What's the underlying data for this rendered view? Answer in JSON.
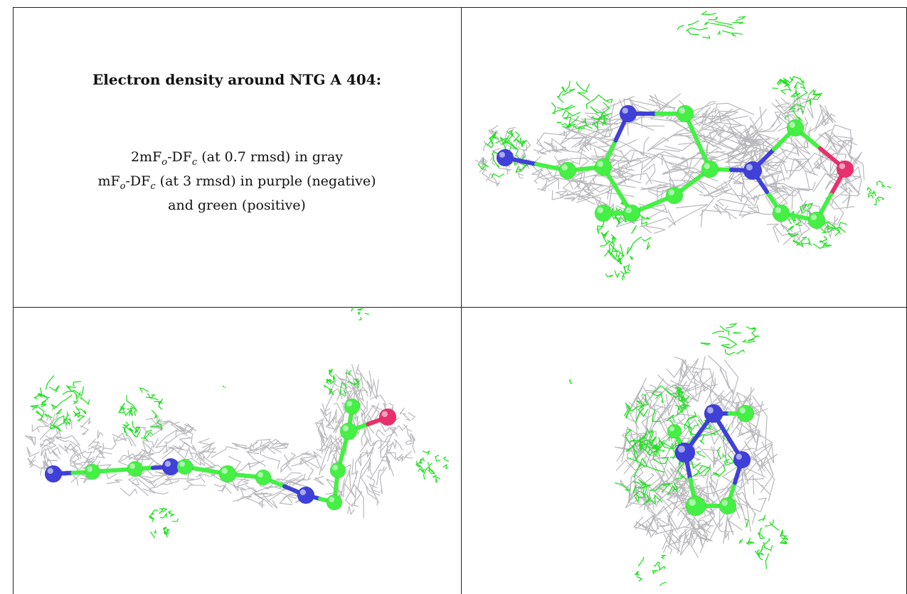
{
  "caption": {
    "title": "Electron density around NTG A 404:",
    "line1_prefix": "2mF",
    "line1_sub1": "o",
    "line1_mid": "-DF",
    "line1_sub2": "c",
    "line1_suffix": " (at 0.7 rmsd) in gray",
    "line2_prefix": "mF",
    "line2_sub1": "o",
    "line2_mid": "-DF",
    "line2_sub2": "c",
    "line2_suffix": " (at 3 rmsd) in purple (negative)",
    "line3": "and green (positive)"
  },
  "colors": {
    "mesh_gray": "#b8b8bc",
    "mesh_green": "#22e022",
    "atom_carbon": "#44f044",
    "atom_nitrogen": "#3f40d8",
    "atom_oxygen": "#e8306e",
    "border": "#222222"
  },
  "panels": [
    {
      "name": "view-top-right"
    },
    {
      "name": "view-bottom-left"
    },
    {
      "name": "view-bottom-right"
    }
  ]
}
